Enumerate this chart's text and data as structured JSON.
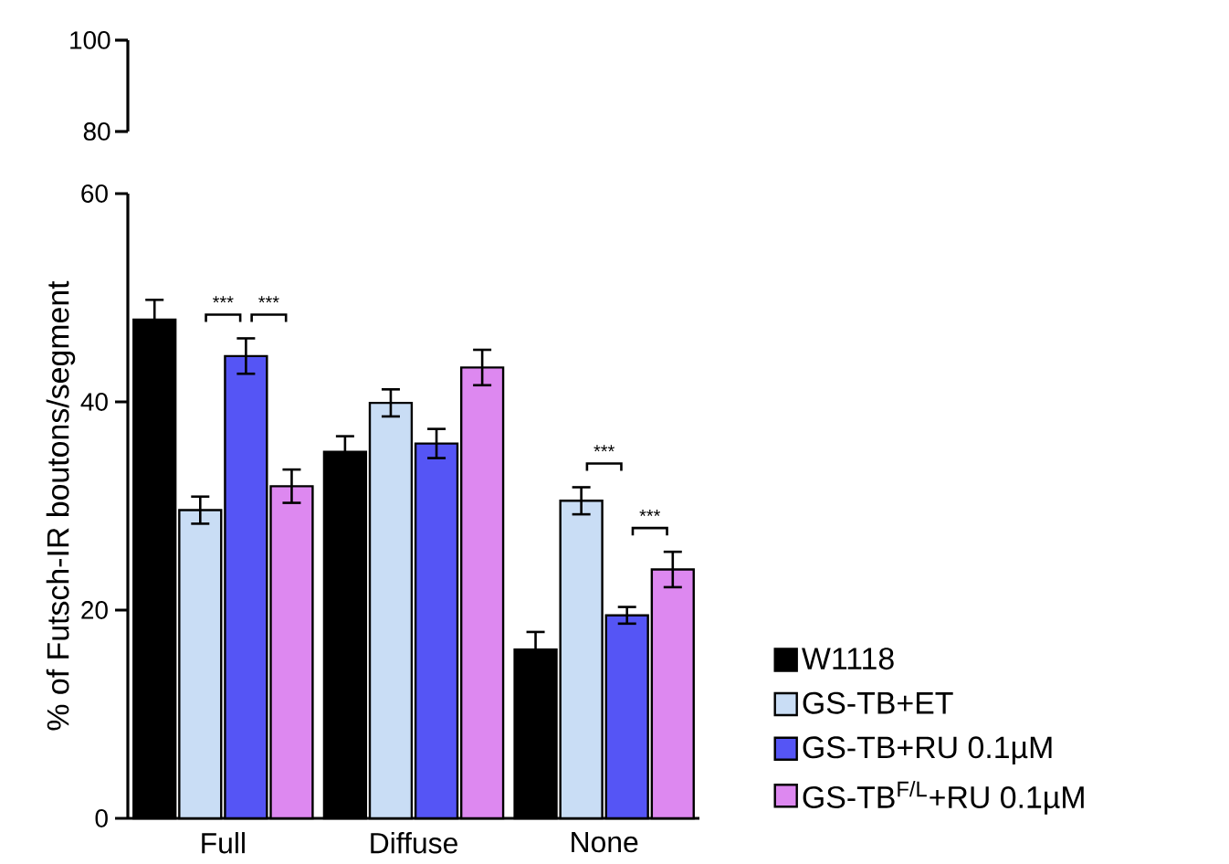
{
  "chart_data": [
    {
      "type": "other",
      "annotations": [
        "100",
        "80"
      ]
    },
    {
      "type": "bar",
      "ylabel": "% of Futsch-IR boutons/segment",
      "categories": [
        "Full",
        "Diffuse",
        "None"
      ],
      "series": [
        {
          "name": "W1118",
          "color": "#000000",
          "values": [
            47.9,
            35.2,
            16.2
          ],
          "errors": [
            1.9,
            1.5,
            1.7
          ]
        },
        {
          "name": "GS-TB+ET",
          "color": "#c9ddf5",
          "values": [
            29.6,
            39.9,
            30.5
          ],
          "errors": [
            1.3,
            1.3,
            1.3
          ]
        },
        {
          "name": "GS-TB+RU 0.1µM",
          "color": "#5555f5",
          "values": [
            44.4,
            36.0,
            19.5
          ],
          "errors": [
            1.7,
            1.4,
            0.8
          ]
        },
        {
          "name": "GS-TB$^{F/L}$+RU 0.1µM",
          "color": "#dd88f0",
          "values": [
            31.9,
            43.3,
            23.9
          ],
          "errors": [
            1.6,
            1.7,
            1.7
          ]
        }
      ],
      "ylim": [
        0,
        60
      ],
      "yticks": [
        0,
        20,
        40,
        60
      ],
      "legend": "right",
      "annotations": [
        "***",
        "***",
        "***",
        "***"
      ]
    }
  ]
}
